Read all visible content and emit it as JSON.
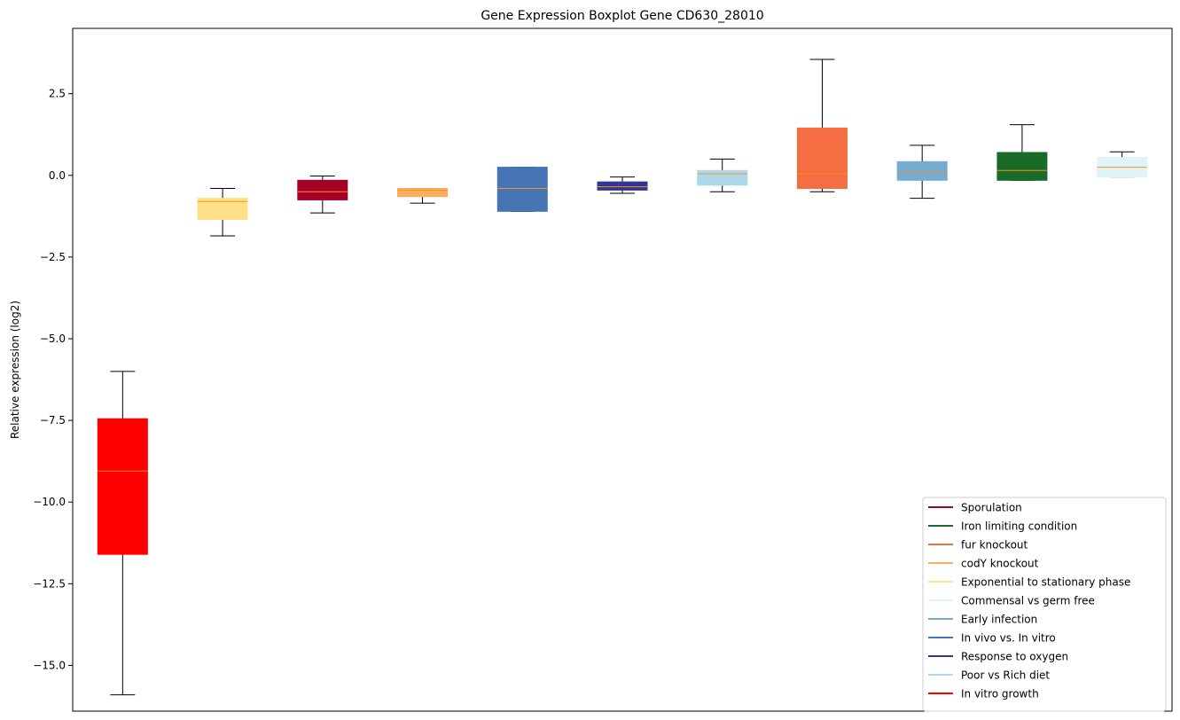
{
  "chart_data": {
    "type": "boxplot",
    "title": "Gene Expression Boxplot Gene CD630_28010",
    "xlabel": "",
    "ylabel": "Relative expression (log2)",
    "ylim": [
      -16.4,
      4.5
    ],
    "yticks": [
      2.5,
      0.0,
      -2.5,
      -5.0,
      -7.5,
      -10.0,
      -12.5,
      -15.0
    ],
    "ytick_labels": [
      "2.5",
      "0.0",
      "−2.5",
      "−5.0",
      "−7.5",
      "−10.0",
      "−12.5",
      "−15.0"
    ],
    "grid": false,
    "legend_position": "lower right",
    "median_color": "#ff8c1a",
    "boxes": [
      {
        "name": "In vitro growth",
        "color": "#ff0000",
        "whisker_low": -15.9,
        "q1": -11.6,
        "median": -9.05,
        "q3": -7.45,
        "whisker_high": -6.0
      },
      {
        "name": "Exponential to stationary phase",
        "color": "#fee08b",
        "whisker_low": -1.85,
        "q1": -1.35,
        "median": -0.8,
        "q3": -0.7,
        "whisker_high": -0.4
      },
      {
        "name": "Sporulation",
        "color": "#a50026",
        "whisker_low": -1.15,
        "q1": -0.75,
        "median": -0.5,
        "q3": -0.15,
        "whisker_high": -0.02
      },
      {
        "name": "codY knockout",
        "color": "#fdae61",
        "whisker_low": -0.85,
        "q1": -0.65,
        "median": -0.45,
        "q3": -0.4,
        "whisker_high": -0.4
      },
      {
        "name": "In vivo vs. In vitro",
        "color": "#4575b4",
        "whisker_low": -1.1,
        "q1": -1.1,
        "median": -0.4,
        "q3": 0.25,
        "whisker_high": 0.25
      },
      {
        "name": "Response to oxygen",
        "color": "#313695",
        "whisker_low": -0.55,
        "q1": -0.45,
        "median": -0.35,
        "q3": -0.2,
        "whisker_high": -0.05
      },
      {
        "name": "Poor vs Rich diet",
        "color": "#abd9e9",
        "whisker_low": -0.5,
        "q1": -0.3,
        "median": 0.05,
        "q3": 0.15,
        "whisker_high": 0.5
      },
      {
        "name": "fur knockout",
        "color": "#f46d43",
        "whisker_low": -0.5,
        "q1": -0.4,
        "median": 0.05,
        "q3": 1.45,
        "whisker_high": 3.55
      },
      {
        "name": "Early infection",
        "color": "#74add1",
        "whisker_low": -0.7,
        "q1": -0.15,
        "median": 0.1,
        "q3": 0.42,
        "whisker_high": 0.92
      },
      {
        "name": "Iron limiting condition",
        "color": "#1a6a2a",
        "whisker_low": -0.15,
        "q1": -0.15,
        "median": 0.15,
        "q3": 0.7,
        "whisker_high": 1.55
      },
      {
        "name": "Commensal vs germ free",
        "color": "#e0f3f8",
        "whisker_low": -0.05,
        "q1": -0.05,
        "median": 0.25,
        "q3": 0.55,
        "whisker_high": 0.72
      }
    ],
    "legend": [
      {
        "label": "Sporulation",
        "color": "#a50026"
      },
      {
        "label": "Iron limiting condition",
        "color": "#1a6a2a"
      },
      {
        "label": "fur knockout",
        "color": "#f46d43"
      },
      {
        "label": "codY knockout",
        "color": "#fdae61"
      },
      {
        "label": "Exponential to stationary phase",
        "color": "#fee08b"
      },
      {
        "label": "Commensal vs germ free",
        "color": "#e0f3f8"
      },
      {
        "label": "Early infection",
        "color": "#74add1"
      },
      {
        "label": "In vivo vs. In vitro",
        "color": "#4575b4"
      },
      {
        "label": "Response to oxygen",
        "color": "#313695"
      },
      {
        "label": "Poor vs Rich diet",
        "color": "#abd9e9"
      },
      {
        "label": "In vitro growth",
        "color": "#ff0000"
      }
    ]
  }
}
